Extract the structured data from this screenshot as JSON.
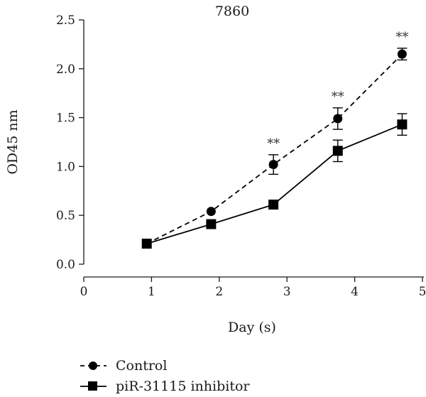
{
  "chart_data": {
    "type": "line",
    "title": "7860",
    "xlabel": "Day (s)",
    "ylabel": "OD45 nm",
    "xlim": [
      0,
      5
    ],
    "ylim": [
      0,
      2.5
    ],
    "x_ticks": [
      0,
      1,
      2,
      3,
      4,
      5
    ],
    "y_ticks": [
      0.0,
      0.5,
      1.0,
      1.5,
      2.0,
      2.5
    ],
    "x_tick_labels": [
      "0",
      "1",
      "2",
      "3",
      "4",
      "5"
    ],
    "y_tick_labels": [
      "0.0",
      "0.5",
      "1.0",
      "1.5",
      "2.0",
      "2.5"
    ],
    "grid": false,
    "legend_position": "bottom-left",
    "series": [
      {
        "name": "Control",
        "marker": "circle",
        "line_style": "dashed",
        "color": "#000000",
        "x": [
          0.93,
          1.88,
          2.8,
          3.75,
          4.7
        ],
        "y": [
          0.21,
          0.54,
          1.02,
          1.49,
          2.15
        ],
        "error": [
          0.0,
          0.0,
          0.1,
          0.11,
          0.06
        ]
      },
      {
        "name": "piR-31115 inhibitor",
        "marker": "square",
        "line_style": "solid",
        "color": "#000000",
        "x": [
          0.93,
          1.88,
          2.8,
          3.75,
          4.7
        ],
        "y": [
          0.21,
          0.41,
          0.61,
          1.16,
          1.43
        ],
        "error": [
          0.0,
          0.0,
          0.0,
          0.11,
          0.11
        ]
      }
    ],
    "annotations": [
      {
        "text": "**",
        "x": 2.8
      },
      {
        "text": "**",
        "x": 3.75
      },
      {
        "text": "**",
        "x": 4.7
      }
    ]
  }
}
